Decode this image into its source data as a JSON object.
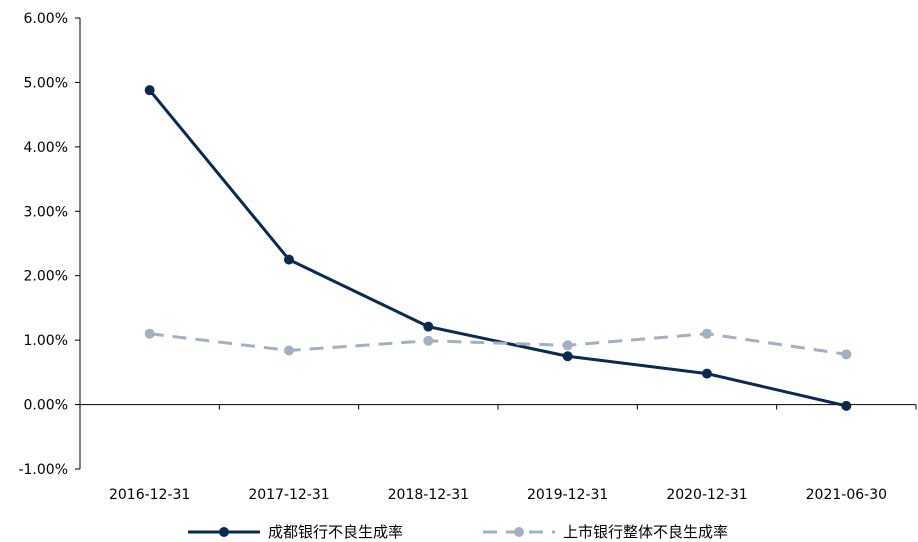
{
  "chart_data": {
    "type": "line",
    "categories": [
      "2016-12-31",
      "2017-12-31",
      "2018-12-31",
      "2019-12-31",
      "2020-12-31",
      "2021-06-30"
    ],
    "series": [
      {
        "name": "成都银行不良生成率",
        "values": [
          4.88,
          2.25,
          1.21,
          0.75,
          0.48,
          -0.02
        ],
        "color": "#0b2a4f",
        "style": "solid"
      },
      {
        "name": "上市银行整体不良生成率",
        "values": [
          1.1,
          0.84,
          0.99,
          0.92,
          1.1,
          0.78
        ],
        "color": "#a3b0c2",
        "style": "dashed"
      }
    ],
    "y_ticks": [
      "-1.00%",
      "0.00%",
      "1.00%",
      "2.00%",
      "3.00%",
      "4.00%",
      "5.00%",
      "6.00%"
    ],
    "ylim": [
      -1,
      6
    ],
    "ylabel_format": "percent",
    "legend_position": "bottom",
    "grid": false
  }
}
